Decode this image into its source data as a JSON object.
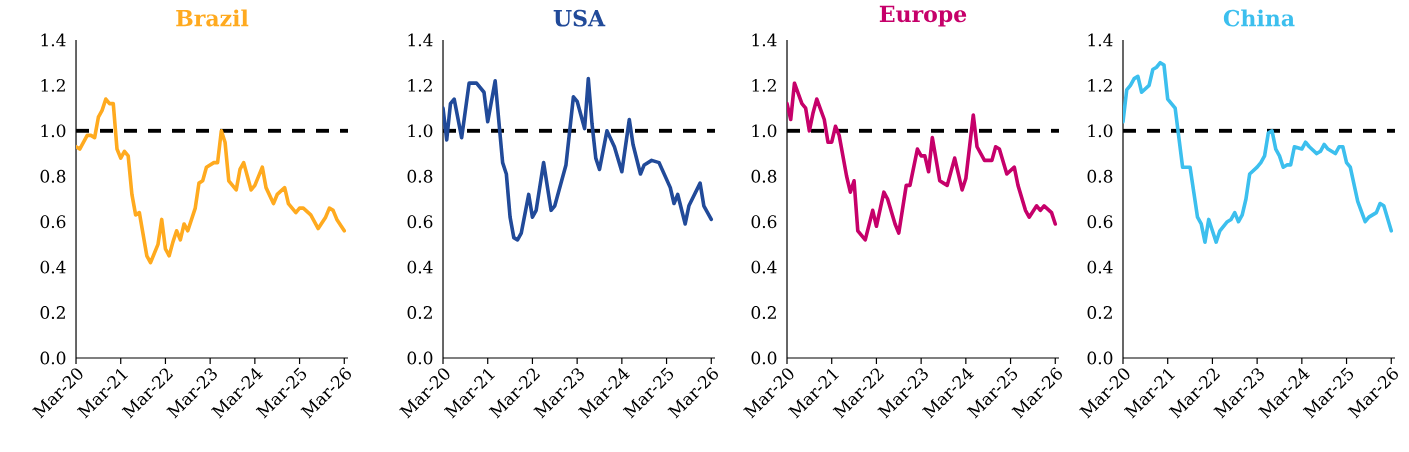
{
  "chart_data": [
    {
      "type": "line",
      "title": "Brazil",
      "color": "#ffaa1f",
      "x": [
        "2020-03",
        "2020-04",
        "2020-06",
        "2020-07",
        "2020-08",
        "2020-09",
        "2020-10",
        "2020-11",
        "2020-12",
        "2021-01",
        "2021-02",
        "2021-03",
        "2021-04",
        "2021-05",
        "2021-06",
        "2021-07",
        "2021-08",
        "2021-10",
        "2021-11",
        "2022-01",
        "2022-02",
        "2022-03",
        "2022-04",
        "2022-05",
        "2022-06",
        "2022-07",
        "2022-08",
        "2022-09",
        "2022-11",
        "2022-12",
        "2023-01",
        "2023-02",
        "2023-04",
        "2023-05",
        "2023-06",
        "2023-07",
        "2023-08",
        "2023-10",
        "2023-11",
        "2023-12",
        "2024-02",
        "2024-03",
        "2024-05",
        "2024-06",
        "2024-08",
        "2024-09",
        "2024-11",
        "2024-12",
        "2025-02",
        "2025-03",
        "2025-04",
        "2025-06",
        "2025-08",
        "2025-10",
        "2025-11",
        "2025-12",
        "2026-01",
        "2026-03"
      ],
      "values": [
        0.93,
        0.92,
        0.98,
        0.98,
        0.97,
        1.06,
        1.09,
        1.14,
        1.12,
        1.12,
        0.92,
        0.88,
        0.91,
        0.89,
        0.72,
        0.63,
        0.64,
        0.45,
        0.42,
        0.5,
        0.61,
        0.48,
        0.45,
        0.51,
        0.56,
        0.52,
        0.59,
        0.56,
        0.66,
        0.77,
        0.78,
        0.84,
        0.86,
        0.86,
        1.0,
        0.95,
        0.78,
        0.74,
        0.83,
        0.86,
        0.74,
        0.76,
        0.84,
        0.75,
        0.68,
        0.72,
        0.75,
        0.68,
        0.64,
        0.66,
        0.66,
        0.63,
        0.57,
        0.62,
        0.66,
        0.65,
        0.61,
        0.56
      ],
      "xlim": [
        "2020-03",
        "2026-04"
      ],
      "xticks": [
        {
          "value": "2020-03",
          "label": "Mar-20"
        },
        {
          "value": "2021-03",
          "label": "Mar-21"
        },
        {
          "value": "2022-03",
          "label": "Mar-22"
        },
        {
          "value": "2023-03",
          "label": "Mar-23"
        },
        {
          "value": "2024-03",
          "label": "Mar-24"
        },
        {
          "value": "2025-03",
          "label": "Mar-25"
        },
        {
          "value": "2026-03",
          "label": "Mar-26"
        }
      ],
      "ylim": [
        0,
        1.4
      ],
      "yticks": [
        {
          "value": 0,
          "label": "0.0"
        },
        {
          "value": 0.2,
          "label": "0.2"
        },
        {
          "value": 0.4,
          "label": "0.4"
        },
        {
          "value": 0.6,
          "label": "0.6"
        },
        {
          "value": 0.8,
          "label": "0.8"
        },
        {
          "value": 1,
          "label": "1.0"
        },
        {
          "value": 1.2,
          "label": "1.2"
        },
        {
          "value": 1.4,
          "label": "1.4"
        }
      ],
      "ref_lines": [
        {
          "axis": "y",
          "value": 1,
          "color": "#000000",
          "line_style": "dashed"
        }
      ]
    },
    {
      "type": "line",
      "title": "USA",
      "color": "#214a99",
      "x": [
        "2020-03",
        "2020-04",
        "2020-05",
        "2020-06",
        "2020-08",
        "2020-10",
        "2020-12",
        "2021-02",
        "2021-03",
        "2021-05",
        "2021-07",
        "2021-08",
        "2021-09",
        "2021-10",
        "2021-11",
        "2021-12",
        "2022-02",
        "2022-03",
        "2022-04",
        "2022-06",
        "2022-08",
        "2022-09",
        "2022-12",
        "2023-02",
        "2023-03",
        "2023-05",
        "2023-06",
        "2023-07",
        "2023-08",
        "2023-09",
        "2023-11",
        "2024-01",
        "2024-03",
        "2024-05",
        "2024-06",
        "2024-08",
        "2024-09",
        "2024-11",
        "2025-01",
        "2025-04",
        "2025-05",
        "2025-06",
        "2025-08",
        "2025-09",
        "2025-12",
        "2026-01",
        "2026-03"
      ],
      "values": [
        1.1,
        0.96,
        1.12,
        1.14,
        0.97,
        1.21,
        1.21,
        1.17,
        1.04,
        1.22,
        0.86,
        0.81,
        0.62,
        0.53,
        0.52,
        0.55,
        0.72,
        0.62,
        0.65,
        0.86,
        0.65,
        0.67,
        0.85,
        1.15,
        1.13,
        1.01,
        1.23,
        1.03,
        0.88,
        0.83,
        1.0,
        0.93,
        0.82,
        1.05,
        0.94,
        0.81,
        0.85,
        0.87,
        0.86,
        0.75,
        0.68,
        0.72,
        0.59,
        0.67,
        0.77,
        0.67,
        0.61
      ],
      "xlim": [
        "2020-03",
        "2026-04"
      ],
      "xticks": [
        {
          "value": "2020-03",
          "label": "Mar-20"
        },
        {
          "value": "2021-03",
          "label": "Mar-21"
        },
        {
          "value": "2022-03",
          "label": "Mar-22"
        },
        {
          "value": "2023-03",
          "label": "Mar-23"
        },
        {
          "value": "2024-03",
          "label": "Mar-24"
        },
        {
          "value": "2025-03",
          "label": "Mar-25"
        },
        {
          "value": "2026-03",
          "label": "Mar-26"
        }
      ],
      "ylim": [
        0,
        1.4
      ],
      "yticks": [
        {
          "value": 0,
          "label": "0.0"
        },
        {
          "value": 0.2,
          "label": "0.2"
        },
        {
          "value": 0.4,
          "label": "0.4"
        },
        {
          "value": 0.6,
          "label": "0.6"
        },
        {
          "value": 0.8,
          "label": "0.8"
        },
        {
          "value": 1,
          "label": "1.0"
        },
        {
          "value": 1.2,
          "label": "1.2"
        },
        {
          "value": 1.4,
          "label": "1.4"
        }
      ],
      "ref_lines": [
        {
          "axis": "y",
          "value": 1,
          "color": "#000000",
          "line_style": "dashed"
        }
      ]
    },
    {
      "type": "line",
      "title": "Europe",
      "color": "#c6006a",
      "x": [
        "2020-03",
        "2020-04",
        "2020-05",
        "2020-07",
        "2020-08",
        "2020-09",
        "2020-10",
        "2020-11",
        "2021-01",
        "2021-02",
        "2021-03",
        "2021-04",
        "2021-05",
        "2021-07",
        "2021-08",
        "2021-09",
        "2021-10",
        "2021-12",
        "2022-02",
        "2022-03",
        "2022-05",
        "2022-06",
        "2022-08",
        "2022-09",
        "2022-11",
        "2022-12",
        "2023-02",
        "2023-03",
        "2023-04",
        "2023-05",
        "2023-06",
        "2023-08",
        "2023-09",
        "2023-10",
        "2023-12",
        "2024-02",
        "2024-03",
        "2024-05",
        "2024-06",
        "2024-08",
        "2024-10",
        "2024-11",
        "2024-12",
        "2025-02",
        "2025-04",
        "2025-05",
        "2025-07",
        "2025-08",
        "2025-10",
        "2025-11",
        "2025-12",
        "2026-02",
        "2026-03"
      ],
      "values": [
        1.12,
        1.05,
        1.21,
        1.12,
        1.1,
        1.0,
        1.08,
        1.14,
        1.05,
        0.95,
        0.95,
        1.02,
        0.98,
        0.8,
        0.73,
        0.78,
        0.56,
        0.52,
        0.65,
        0.58,
        0.73,
        0.7,
        0.59,
        0.55,
        0.76,
        0.76,
        0.92,
        0.89,
        0.89,
        0.82,
        0.97,
        0.78,
        0.77,
        0.76,
        0.88,
        0.74,
        0.79,
        1.07,
        0.93,
        0.87,
        0.87,
        0.93,
        0.92,
        0.81,
        0.84,
        0.76,
        0.65,
        0.62,
        0.67,
        0.65,
        0.67,
        0.64,
        0.59
      ],
      "xlim": [
        "2020-03",
        "2026-04"
      ],
      "xticks": [
        {
          "value": "2020-03",
          "label": "Mar-20"
        },
        {
          "value": "2021-03",
          "label": "Mar-21"
        },
        {
          "value": "2022-03",
          "label": "Mar-22"
        },
        {
          "value": "2023-03",
          "label": "Mar-23"
        },
        {
          "value": "2024-03",
          "label": "Mar-24"
        },
        {
          "value": "2025-03",
          "label": "Mar-25"
        },
        {
          "value": "2026-03",
          "label": "Mar-26"
        }
      ],
      "ylim": [
        0,
        1.4
      ],
      "yticks": [
        {
          "value": 0,
          "label": "0.0"
        },
        {
          "value": 0.2,
          "label": "0.2"
        },
        {
          "value": 0.4,
          "label": "0.4"
        },
        {
          "value": 0.6,
          "label": "0.6"
        },
        {
          "value": 0.8,
          "label": "0.8"
        },
        {
          "value": 1,
          "label": "1.0"
        },
        {
          "value": 1.2,
          "label": "1.2"
        },
        {
          "value": 1.4,
          "label": "1.4"
        }
      ],
      "ref_lines": [
        {
          "axis": "y",
          "value": 1,
          "color": "#000000",
          "line_style": "dashed"
        }
      ]
    },
    {
      "type": "line",
      "title": "China",
      "color": "#3cbfee",
      "x": [
        "2020-03",
        "2020-04",
        "2020-05",
        "2020-06",
        "2020-07",
        "2020-08",
        "2020-10",
        "2020-11",
        "2020-12",
        "2021-01",
        "2021-02",
        "2021-03",
        "2021-04",
        "2021-05",
        "2021-07",
        "2021-09",
        "2021-10",
        "2021-11",
        "2021-12",
        "2022-01",
        "2022-02",
        "2022-03",
        "2022-04",
        "2022-05",
        "2022-07",
        "2022-08",
        "2022-09",
        "2022-10",
        "2022-11",
        "2022-12",
        "2023-01",
        "2023-03",
        "2023-04",
        "2023-05",
        "2023-06",
        "2023-07",
        "2023-08",
        "2023-09",
        "2023-10",
        "2023-11",
        "2023-12",
        "2024-01",
        "2024-03",
        "2024-04",
        "2024-05",
        "2024-07",
        "2024-08",
        "2024-09",
        "2024-10",
        "2024-12",
        "2025-01",
        "2025-02",
        "2025-03",
        "2025-04",
        "2025-06",
        "2025-08",
        "2025-09",
        "2025-11",
        "2025-12",
        "2026-01",
        "2026-03"
      ],
      "values": [
        1.04,
        1.18,
        1.2,
        1.23,
        1.24,
        1.17,
        1.2,
        1.27,
        1.28,
        1.3,
        1.29,
        1.14,
        1.12,
        1.1,
        0.84,
        0.84,
        0.73,
        0.62,
        0.59,
        0.51,
        0.61,
        0.56,
        0.51,
        0.56,
        0.6,
        0.61,
        0.64,
        0.6,
        0.63,
        0.7,
        0.81,
        0.84,
        0.86,
        0.89,
        0.99,
        1.0,
        0.92,
        0.89,
        0.84,
        0.85,
        0.85,
        0.93,
        0.92,
        0.95,
        0.93,
        0.9,
        0.91,
        0.94,
        0.92,
        0.9,
        0.93,
        0.93,
        0.86,
        0.84,
        0.69,
        0.6,
        0.62,
        0.64,
        0.68,
        0.67,
        0.56
      ],
      "xlim": [
        "2020-03",
        "2026-04"
      ],
      "xticks": [
        {
          "value": "2020-03",
          "label": "Mar-20"
        },
        {
          "value": "2021-03",
          "label": "Mar-21"
        },
        {
          "value": "2022-03",
          "label": "Mar-22"
        },
        {
          "value": "2023-03",
          "label": "Mar-23"
        },
        {
          "value": "2024-03",
          "label": "Mar-24"
        },
        {
          "value": "2025-03",
          "label": "Mar-25"
        },
        {
          "value": "2026-03",
          "label": "Mar-26"
        }
      ],
      "ylim": [
        0,
        1.4
      ],
      "yticks": [
        {
          "value": 0,
          "label": "0.0"
        },
        {
          "value": 0.2,
          "label": "0.2"
        },
        {
          "value": 0.4,
          "label": "0.4"
        },
        {
          "value": 0.6,
          "label": "0.6"
        },
        {
          "value": 0.8,
          "label": "0.8"
        },
        {
          "value": 1,
          "label": "1.0"
        },
        {
          "value": 1.2,
          "label": "1.2"
        },
        {
          "value": 1.4,
          "label": "1.4"
        }
      ],
      "ref_lines": [
        {
          "axis": "y",
          "value": 1,
          "color": "#000000",
          "line_style": "dashed"
        }
      ]
    }
  ]
}
